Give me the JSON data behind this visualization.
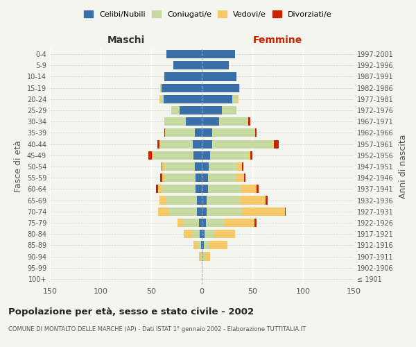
{
  "age_groups": [
    "100+",
    "95-99",
    "90-94",
    "85-89",
    "80-84",
    "75-79",
    "70-74",
    "65-69",
    "60-64",
    "55-59",
    "50-54",
    "45-49",
    "40-44",
    "35-39",
    "30-34",
    "25-29",
    "20-24",
    "15-19",
    "10-14",
    "5-9",
    "0-4"
  ],
  "birth_years": [
    "≤ 1901",
    "1902-1906",
    "1907-1911",
    "1912-1916",
    "1917-1921",
    "1922-1926",
    "1927-1931",
    "1932-1936",
    "1937-1941",
    "1942-1946",
    "1947-1951",
    "1952-1956",
    "1957-1961",
    "1962-1966",
    "1967-1971",
    "1972-1976",
    "1977-1981",
    "1982-1986",
    "1987-1991",
    "1992-1996",
    "1997-2001"
  ],
  "colors": {
    "celibi": "#3a6fa8",
    "coniugati": "#c5d9a0",
    "vedovi": "#f5c96a",
    "divorziati": "#cc2200"
  },
  "male": {
    "celibi": [
      0,
      0,
      0,
      1,
      2,
      3,
      5,
      5,
      6,
      6,
      7,
      8,
      9,
      7,
      16,
      22,
      38,
      40,
      37,
      28,
      35
    ],
    "coniugati": [
      0,
      0,
      1,
      3,
      7,
      16,
      28,
      30,
      33,
      30,
      30,
      40,
      32,
      28,
      20,
      8,
      3,
      1,
      0,
      0,
      0
    ],
    "vedovi": [
      0,
      0,
      2,
      4,
      9,
      5,
      10,
      7,
      4,
      3,
      2,
      1,
      1,
      1,
      1,
      0,
      1,
      0,
      0,
      0,
      0
    ],
    "divorziati": [
      0,
      0,
      0,
      0,
      0,
      0,
      0,
      0,
      2,
      2,
      1,
      4,
      2,
      1,
      0,
      0,
      0,
      0,
      0,
      0,
      0
    ]
  },
  "female": {
    "celibi": [
      0,
      0,
      1,
      2,
      3,
      4,
      5,
      5,
      6,
      6,
      7,
      8,
      10,
      10,
      17,
      20,
      30,
      37,
      34,
      27,
      33
    ],
    "coniugati": [
      0,
      1,
      2,
      5,
      10,
      18,
      35,
      33,
      33,
      28,
      28,
      38,
      60,
      42,
      28,
      14,
      5,
      1,
      0,
      0,
      0
    ],
    "vedovi": [
      0,
      0,
      5,
      18,
      20,
      30,
      42,
      25,
      15,
      8,
      5,
      2,
      1,
      1,
      1,
      0,
      1,
      0,
      0,
      0,
      0
    ],
    "divorziati": [
      0,
      0,
      0,
      0,
      0,
      2,
      1,
      2,
      2,
      1,
      1,
      2,
      5,
      1,
      2,
      0,
      0,
      0,
      0,
      0,
      0
    ]
  },
  "xlim": 150,
  "title": "Popolazione per età, sesso e stato civile - 2002",
  "subtitle": "COMUNE DI MONTALTO DELLE MARCHE (AP) - Dati ISTAT 1° gennaio 2002 - Elaborazione TUTTITALIA.IT",
  "ylabel_left": "Fasce di età",
  "ylabel_right": "Anni di nascita",
  "xlabel_left": "Maschi",
  "xlabel_right": "Femmine",
  "legend_labels": [
    "Celibi/Nubili",
    "Coniugati/e",
    "Vedovi/e",
    "Divorziati/e"
  ],
  "background_color": "#f5f5f0"
}
